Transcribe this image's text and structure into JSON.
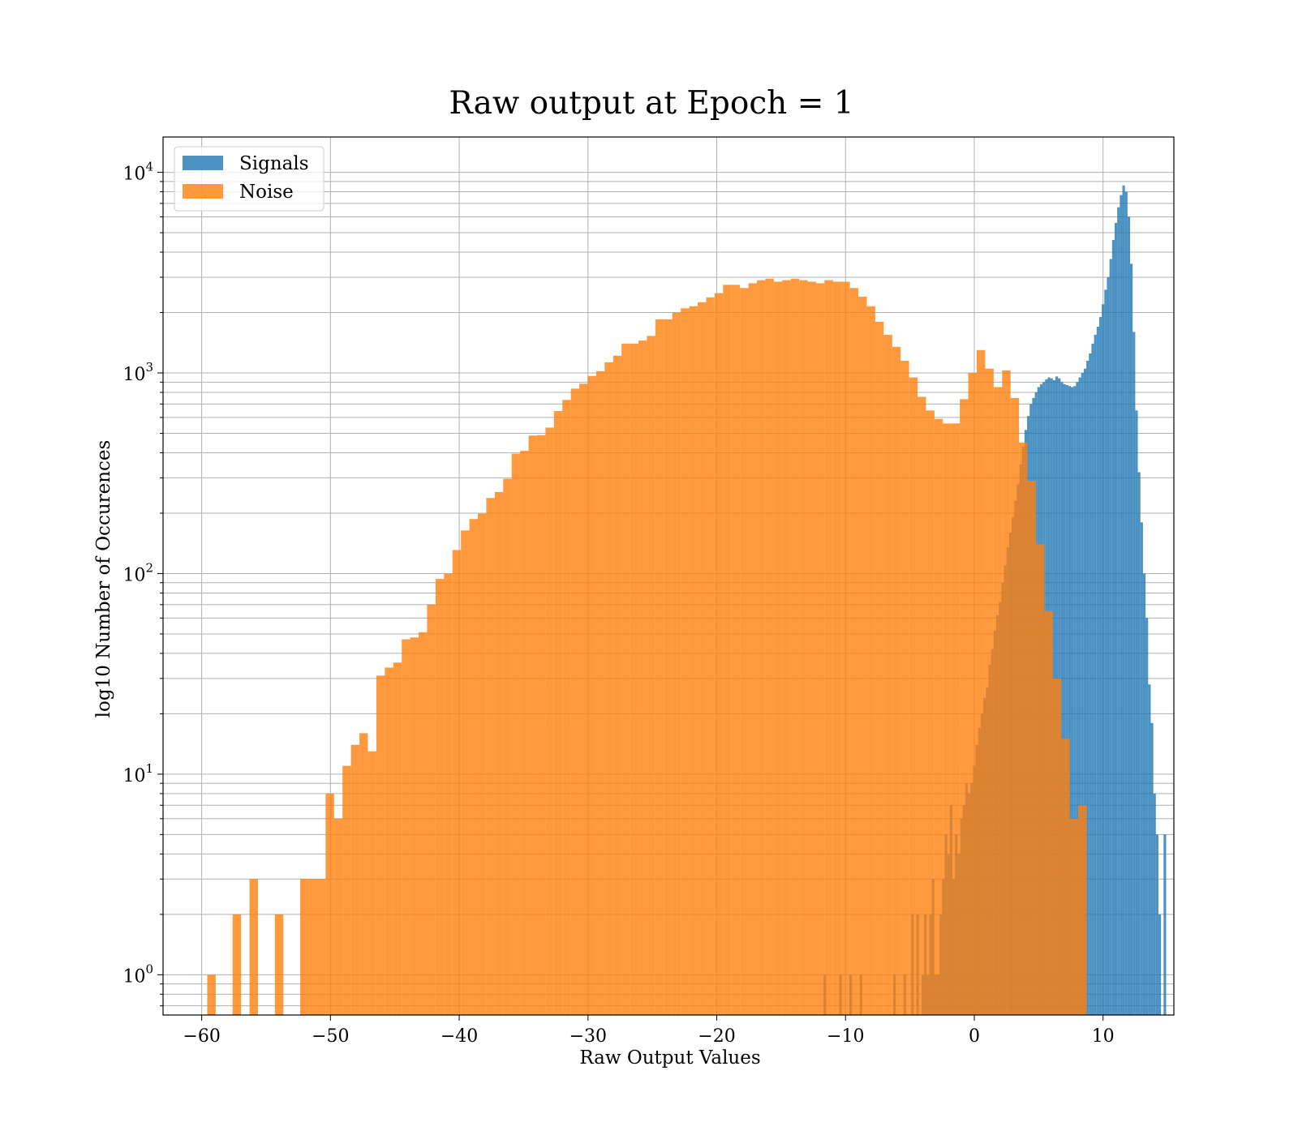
{
  "chart_data": {
    "type": "histogram",
    "title": "Raw output at Epoch = 1",
    "xlabel": "Raw Output Values",
    "ylabel": "log10 Number of Occurences",
    "xlim": [
      -63,
      15.5
    ],
    "ylim": [
      0.63,
      15000
    ],
    "yscale": "log",
    "grid": true,
    "legend_position": "upper-left",
    "x_ticks": [
      -60,
      -50,
      -40,
      -30,
      -20,
      -10,
      0,
      10
    ],
    "x_tick_labels": [
      "−60",
      "−50",
      "−40",
      "−30",
      "−20",
      "−10",
      "0",
      "10"
    ],
    "y_ticks": [
      1,
      10,
      100,
      1000,
      10000
    ],
    "y_tick_labels": [
      {
        "base": "10",
        "exp": "0"
      },
      {
        "base": "10",
        "exp": "1"
      },
      {
        "base": "10",
        "exp": "2"
      },
      {
        "base": "10",
        "exp": "3"
      },
      {
        "base": "10",
        "exp": "4"
      }
    ],
    "series": [
      {
        "name": "Signals",
        "color": "#1f77b4",
        "opacity": 0.8,
        "bin_start": -11.7,
        "bin_width": 0.2,
        "counts": [
          1,
          0,
          0,
          0,
          0,
          0,
          1,
          0,
          0,
          0,
          1,
          0,
          0,
          0,
          1,
          0,
          0,
          0,
          0,
          0,
          0,
          0,
          0,
          0,
          0,
          0,
          0,
          1,
          0,
          0,
          0,
          1,
          0,
          0,
          2,
          0,
          2,
          0,
          1,
          2,
          1,
          2,
          3,
          1,
          1,
          2,
          3,
          5,
          4,
          7,
          3,
          5,
          4,
          6,
          7,
          9,
          8,
          9,
          11,
          14,
          17,
          20,
          24,
          27,
          35,
          42,
          52,
          62,
          72,
          90,
          110,
          135,
          160,
          190,
          230,
          280,
          350,
          430,
          520,
          610,
          700,
          750,
          800,
          850,
          880,
          900,
          930,
          950,
          940,
          920,
          960,
          940,
          900,
          880,
          870,
          860,
          850,
          860,
          900,
          950,
          1000,
          1050,
          1150,
          1250,
          1400,
          1550,
          1700,
          1900,
          2200,
          2600,
          3000,
          3700,
          4600,
          5600,
          6700,
          7700,
          8600,
          8000,
          6000,
          3500,
          1600,
          650,
          320,
          180,
          100,
          60,
          28,
          18,
          8,
          5,
          2,
          0,
          5
        ]
      },
      {
        "name": "Noise",
        "color": "#ff7f0e",
        "opacity": 0.8,
        "bin_start": -59.57,
        "bin_width": 0.6567,
        "counts": [
          1,
          0,
          0,
          2,
          0,
          3,
          0,
          0,
          2,
          0,
          0,
          3,
          3,
          3,
          8,
          6,
          11,
          14,
          16,
          13,
          31,
          34,
          36,
          47,
          48,
          51,
          70,
          94,
          100,
          131,
          164,
          187,
          199,
          238,
          255,
          297,
          396,
          409,
          487,
          490,
          534,
          646,
          734,
          835,
          884,
          966,
          1020,
          1130,
          1218,
          1400,
          1400,
          1450,
          1530,
          1850,
          1850,
          2000,
          2100,
          2150,
          2250,
          2380,
          2500,
          2750,
          2750,
          2650,
          2800,
          2900,
          2950,
          2850,
          2900,
          2950,
          2900,
          2850,
          2800,
          2900,
          2850,
          2850,
          2650,
          2400,
          2150,
          1800,
          1550,
          1350,
          1150,
          950,
          760,
          650,
          590,
          560,
          560,
          740,
          1000,
          1300,
          1050,
          850,
          1030,
          750,
          450,
          290,
          140,
          65,
          30,
          15,
          6,
          7
        ]
      }
    ]
  }
}
